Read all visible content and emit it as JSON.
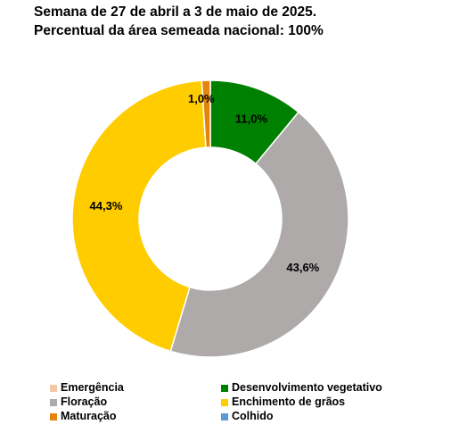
{
  "header": {
    "title_line1": "Semana de 27 de abril a 3 de maio de 2025.",
    "title_line2": "Percentual da área semeada nacional: 100%"
  },
  "chart_data": {
    "type": "pie",
    "style": "donut",
    "series": [
      {
        "name": "Emergência",
        "value": 0.0,
        "label": "",
        "color": "#f4c7a6"
      },
      {
        "name": "Desenvolvimento vegetativo",
        "value": 11.0,
        "label": "11,0%",
        "color": "#008000"
      },
      {
        "name": "Floração",
        "value": 43.6,
        "label": "43,6%",
        "color": "#aeaaaa"
      },
      {
        "name": "Enchimento de grãos",
        "value": 44.3,
        "label": "44,3%",
        "color": "#ffcc00"
      },
      {
        "name": "Maturação",
        "value": 1.0,
        "label": "1,0%",
        "color": "#e2860e"
      },
      {
        "name": "Colhido",
        "value": 0.0,
        "label": "",
        "color": "#5b9bd5"
      }
    ],
    "legend_position": "bottom"
  },
  "legend_order": [
    0,
    1,
    2,
    3,
    4,
    5
  ]
}
